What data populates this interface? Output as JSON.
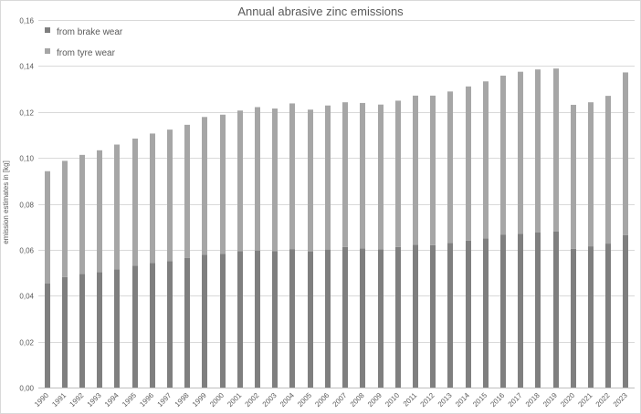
{
  "chart_data": {
    "type": "bar",
    "stacked": true,
    "title": "Annual abrasive zinc emissions",
    "xlabel": "",
    "ylabel": "emission estimates in [kg]",
    "ylim": [
      0,
      0.16
    ],
    "yticks": [
      "0,00",
      "0,02",
      "0,04",
      "0,06",
      "0,08",
      "0,10",
      "0,12",
      "0,14",
      "0,16"
    ],
    "grid": true,
    "legend_position": "top-left",
    "categories": [
      "1990",
      "1991",
      "1992",
      "1993",
      "1994",
      "1995",
      "1996",
      "1997",
      "1998",
      "1999",
      "2000",
      "2001",
      "2002",
      "2003",
      "2004",
      "2005",
      "2006",
      "2007",
      "2008",
      "2009",
      "2010",
      "2011",
      "2012",
      "2013",
      "2014",
      "2015",
      "2016",
      "2017",
      "2018",
      "2019",
      "2020",
      "2021",
      "2022",
      "2023"
    ],
    "series": [
      {
        "name": "from brake wear",
        "color": "#7f7f7f",
        "values": [
          0.0454,
          0.0481,
          0.0495,
          0.0502,
          0.0515,
          0.0531,
          0.0543,
          0.0551,
          0.0564,
          0.0578,
          0.0582,
          0.0594,
          0.0597,
          0.0594,
          0.0603,
          0.0593,
          0.0601,
          0.0612,
          0.0606,
          0.0602,
          0.0612,
          0.0622,
          0.062,
          0.0629,
          0.064,
          0.065,
          0.0665,
          0.067,
          0.0675,
          0.0679,
          0.0604,
          0.0615,
          0.0627,
          0.0664
        ]
      },
      {
        "name": "from tyre wear",
        "color": "#a6a6a6",
        "values": [
          0.0488,
          0.0506,
          0.0518,
          0.0531,
          0.0543,
          0.0553,
          0.0563,
          0.0572,
          0.058,
          0.06,
          0.0606,
          0.0612,
          0.0624,
          0.0621,
          0.0634,
          0.0617,
          0.0627,
          0.063,
          0.0633,
          0.063,
          0.0637,
          0.0649,
          0.0651,
          0.066,
          0.0671,
          0.0683,
          0.0693,
          0.0705,
          0.071,
          0.071,
          0.0627,
          0.0627,
          0.0643,
          0.0708
        ]
      }
    ]
  }
}
